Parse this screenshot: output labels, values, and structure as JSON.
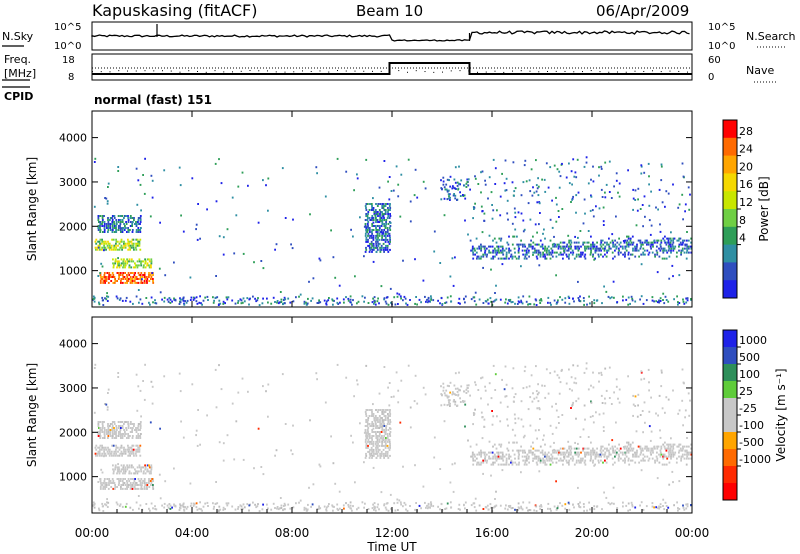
{
  "header": {
    "site": "Kapuskasing (fitACF)",
    "beam": "Beam 10",
    "date": "06/Apr/2009"
  },
  "noise_panel": {
    "left_label": "N.Sky",
    "right_label": "N.Search",
    "left_ticks": [
      "10^5",
      "10^0"
    ],
    "right_ticks": [
      "10^5",
      "10^0"
    ]
  },
  "freq_panel": {
    "left_label_1": "Freq.",
    "left_label_2": "[MHz]",
    "left_ticks": [
      "18",
      "8"
    ],
    "right_label": "Nave",
    "right_ticks": [
      "60",
      "0"
    ],
    "cpid_label": "CPID",
    "cpid_text": "normal (fast) 151"
  },
  "chart_data": [
    {
      "type": "heatmap",
      "name": "power",
      "ylabel": "Slant Range [km]",
      "ylim": [
        180,
        4600
      ],
      "yticks": [
        "4000",
        "3000",
        "2000",
        "1000"
      ],
      "colorbar_label": "Power [dB]",
      "colorbar_ticks": [
        "28",
        "24",
        "20",
        "16",
        "12",
        "8",
        "4"
      ],
      "colorbar_colors": [
        "#ff0000",
        "#ff6a00",
        "#ffa500",
        "#f5d800",
        "#c8e600",
        "#6fcf44",
        "#2e9e58",
        "#2f8fa3",
        "#2f4ebf",
        "#1e22e8"
      ],
      "regions": [
        {
          "t0": 0.3,
          "t1": 2.4,
          "r0": 700,
          "r1": 950,
          "level": "high"
        },
        {
          "t0": 0.8,
          "t1": 2.4,
          "r0": 1050,
          "r1": 1250,
          "level": "mid"
        },
        {
          "t0": 0.1,
          "t1": 1.9,
          "r0": 1450,
          "r1": 1700,
          "level": "mid"
        },
        {
          "t0": 0.2,
          "t1": 1.9,
          "r0": 1850,
          "r1": 2250,
          "level": "low"
        },
        {
          "t0": 10.9,
          "t1": 11.9,
          "r0": 1400,
          "r1": 2500,
          "level": "low"
        },
        {
          "t0": 15.1,
          "t1": 23.9,
          "r0": 1250,
          "r1": 1750,
          "level": "low"
        }
      ]
    },
    {
      "type": "heatmap",
      "name": "velocity",
      "ylabel": "Slant Range [km]",
      "ylim": [
        180,
        4600
      ],
      "yticks": [
        "4000",
        "3000",
        "2000",
        "1000"
      ],
      "colorbar_label": "Velocity [m s⁻¹]",
      "colorbar_ticks": [
        "1000",
        "500",
        "100",
        "25",
        "-25",
        "-100",
        "-500",
        "-1000"
      ],
      "colorbar_colors": [
        "#1e22e8",
        "#2f4ebf",
        "#2e8f5a",
        "#5fcc3a",
        "#c8c8c8",
        "#c8c8c8",
        "#ffa500",
        "#ff6a00",
        "#ff2a00",
        "#ff0000"
      ]
    }
  ],
  "x_axis": {
    "label": "Time UT",
    "ticks": [
      "00:00",
      "04:00",
      "08:00",
      "12:00",
      "16:00",
      "20:00",
      "00:00"
    ]
  }
}
